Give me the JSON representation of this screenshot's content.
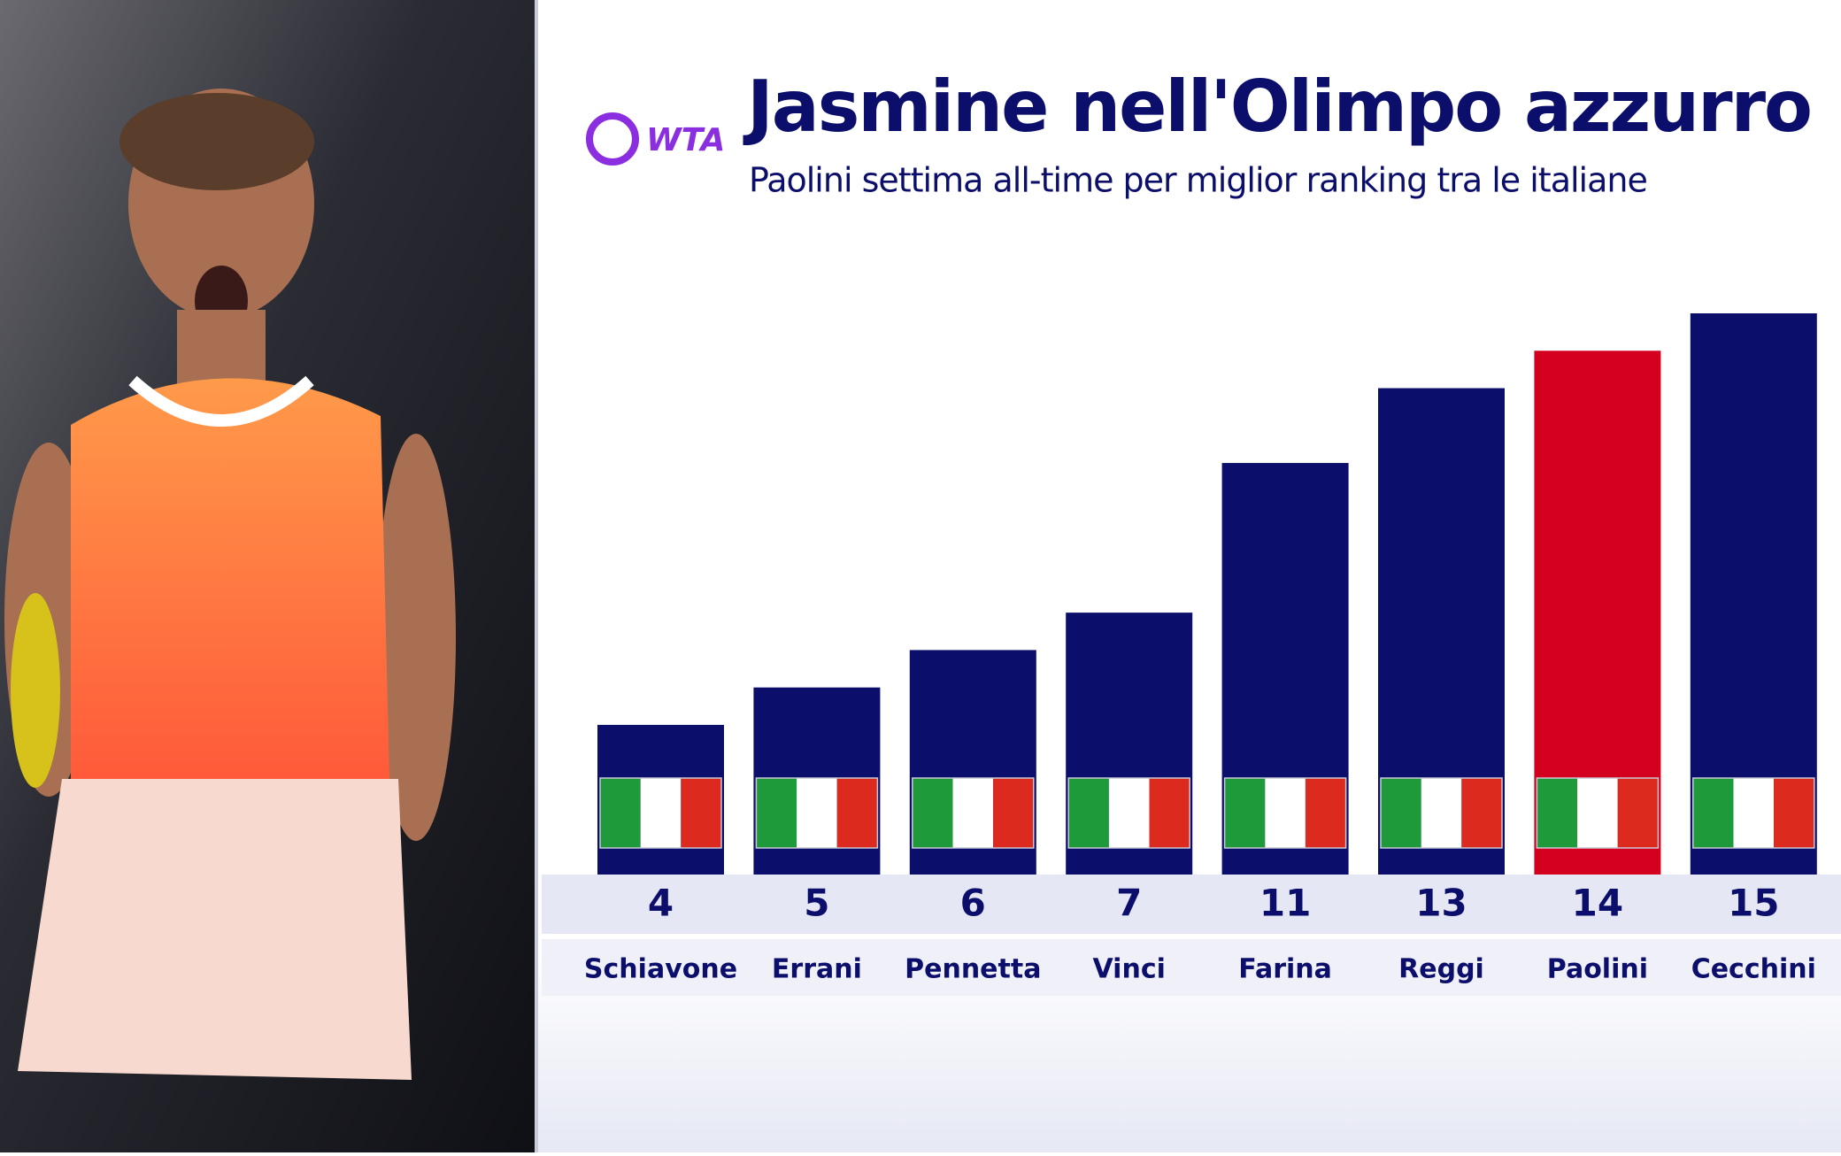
{
  "chart_data": {
    "type": "bar",
    "logo": "WTA",
    "title": "Jasmine nell'Olimpo azzurro",
    "subtitle": "Paolini settima all-time per miglior ranking tra le italiane",
    "categories": [
      "Schiavone",
      "Errani",
      "Pennetta",
      "Vinci",
      "Farina",
      "Reggi",
      "Paolini",
      "Cecchini"
    ],
    "values": [
      4,
      5,
      6,
      7,
      11,
      13,
      14,
      15
    ],
    "colors": [
      "#0b0f6b",
      "#0b0f6b",
      "#0b0f6b",
      "#0b0f6b",
      "#0b0f6b",
      "#0b0f6b",
      "#d4001f",
      "#0b0f6b"
    ],
    "ylim": [
      0,
      15
    ]
  }
}
